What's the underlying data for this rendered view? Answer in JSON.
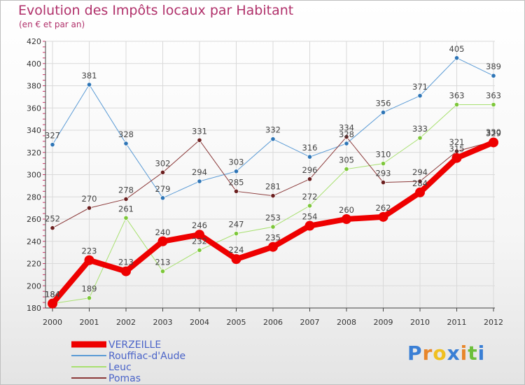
{
  "header": {
    "title": "Evolution des Impôts locaux par Habitant",
    "subtitle": "(en € et par an)"
  },
  "brand": {
    "letters": [
      "P",
      "r",
      "o",
      "x",
      "i",
      "t",
      "i"
    ],
    "colors": [
      "#3a7fd5",
      "#e8862a",
      "#f0c020",
      "#3a7fd5",
      "#e8862a",
      "#6cbf3a",
      "#3a7fd5"
    ]
  },
  "chart_data": {
    "type": "line",
    "title": "Evolution des Impôts locaux par Habitant",
    "subtitle": "(en € et par an)",
    "xlabel": "",
    "ylabel": "",
    "ylim": [
      180,
      420
    ],
    "y_ticks": [
      180,
      200,
      220,
      240,
      260,
      280,
      300,
      320,
      340,
      360,
      380,
      400,
      420
    ],
    "grid": true,
    "legend_position": "bottom-left",
    "categories": [
      "2000",
      "2001",
      "2002",
      "2003",
      "2004",
      "2005",
      "2006",
      "2007",
      "2008",
      "2009",
      "2010",
      "2011",
      "2012"
    ],
    "series": [
      {
        "name": "Rouffiac-d'Aude",
        "color": "#5b9bd5",
        "point_color": "#2e75b6",
        "width": 1,
        "values": [
          327,
          381,
          328,
          279,
          294,
          303,
          332,
          316,
          328,
          356,
          371,
          405,
          389
        ]
      },
      {
        "name": "Leuc",
        "color": "#a8e070",
        "point_color": "#7dc73a",
        "width": 1,
        "values": [
          184,
          189,
          261,
          213,
          232,
          247,
          253,
          272,
          305,
          310,
          333,
          363,
          363
        ]
      },
      {
        "name": "Pomas",
        "color": "#8b3a3a",
        "point_color": "#6b1f1f",
        "width": 1,
        "values": [
          252,
          270,
          278,
          302,
          331,
          285,
          281,
          296,
          334,
          293,
          294,
          321,
          330
        ]
      },
      {
        "name": "VERZEILLE",
        "color": "#ee0000",
        "point_color": "#ee0000",
        "width": 8,
        "values": [
          184,
          223,
          213,
          240,
          246,
          224,
          235,
          254,
          260,
          262,
          284,
          315,
          329
        ]
      }
    ],
    "legend_order": [
      "VERZEILLE",
      "Rouffiac-d'Aude",
      "Leuc",
      "Pomas"
    ]
  }
}
